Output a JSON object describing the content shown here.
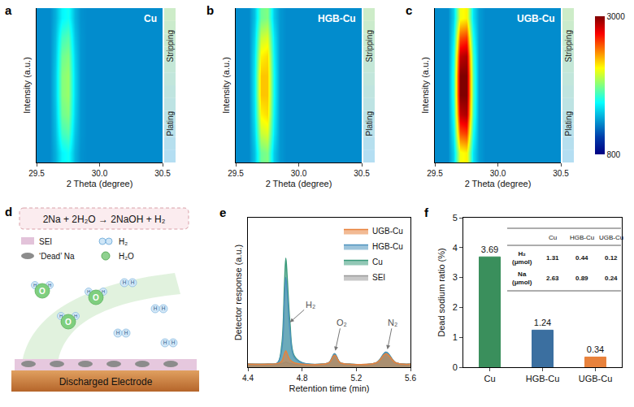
{
  "chart_data": [
    {
      "type": "heatmap",
      "panel_label": "a",
      "title": "Cu",
      "x_label": "2 Theta (degree)",
      "y_label": "Intensity (a.u.)",
      "x": [
        29.5,
        29.6,
        29.65,
        29.7,
        29.75,
        29.8,
        29.85,
        29.9,
        30.0,
        30.25,
        30.5
      ],
      "cells": [
        [
          1300,
          1300,
          1400,
          1600,
          1650,
          1420,
          1320,
          1300,
          1300,
          1300,
          1300
        ],
        [
          1300,
          1300,
          1430,
          1750,
          1800,
          1460,
          1330,
          1300,
          1300,
          1300,
          1300
        ],
        [
          1300,
          1300,
          1450,
          1850,
          1900,
          1500,
          1330,
          1300,
          1300,
          1300,
          1300
        ],
        [
          1300,
          1300,
          1470,
          1900,
          1950,
          1520,
          1330,
          1300,
          1300,
          1300,
          1300
        ],
        [
          1300,
          1300,
          1470,
          1900,
          1950,
          1520,
          1330,
          1300,
          1300,
          1300,
          1300
        ],
        [
          1300,
          1300,
          1450,
          1850,
          1900,
          1500,
          1330,
          1300,
          1300,
          1300,
          1300
        ],
        [
          1300,
          1300,
          1430,
          1750,
          1800,
          1460,
          1330,
          1300,
          1300,
          1300,
          1300
        ],
        [
          1300,
          1300,
          1400,
          1600,
          1650,
          1420,
          1320,
          1300,
          1300,
          1300,
          1300
        ]
      ],
      "xlim": [
        29.5,
        30.5
      ],
      "xticks": [
        29.5,
        {
          "value": 30,
          "label": "30.0"
        },
        30.5
      ],
      "colorbar_range": [
        800,
        3000
      ],
      "annotations": [
        "Stripping",
        "Plating"
      ],
      "tick_labels": "x"
    },
    {
      "type": "heatmap",
      "panel_label": "b",
      "title": "HGB-Cu",
      "x_label": "2 Theta (degree)",
      "y_label": "Intensity (a.u.)",
      "x": [
        29.5,
        29.6,
        29.65,
        29.7,
        29.75,
        29.8,
        29.85,
        29.9,
        30.0,
        30.25,
        30.5
      ],
      "cells": [
        [
          1300,
          1300,
          1450,
          1850,
          1900,
          1480,
          1340,
          1300,
          1300,
          1300,
          1300
        ],
        [
          1300,
          1300,
          1500,
          2050,
          2100,
          1560,
          1340,
          1300,
          1300,
          1300,
          1300
        ],
        [
          1300,
          1300,
          1540,
          2200,
          2250,
          1600,
          1340,
          1300,
          1300,
          1300,
          1300
        ],
        [
          1300,
          1300,
          1560,
          2300,
          2300,
          1630,
          1340,
          1300,
          1300,
          1300,
          1300
        ],
        [
          1300,
          1300,
          1560,
          2300,
          2300,
          1630,
          1340,
          1300,
          1300,
          1300,
          1300
        ],
        [
          1300,
          1300,
          1540,
          2200,
          2250,
          1600,
          1340,
          1300,
          1300,
          1300,
          1300
        ],
        [
          1300,
          1300,
          1500,
          2050,
          2100,
          1560,
          1340,
          1300,
          1300,
          1300,
          1300
        ],
        [
          1300,
          1300,
          1450,
          1850,
          1900,
          1480,
          1340,
          1300,
          1300,
          1300,
          1300
        ]
      ],
      "xlim": [
        29.5,
        30.5
      ],
      "xticks": [
        29.5,
        {
          "value": 30,
          "label": "30.0"
        },
        30.5
      ],
      "colorbar_range": [
        800,
        3000
      ],
      "annotations": [
        "Stripping",
        "Plating"
      ],
      "tick_labels": "x"
    },
    {
      "type": "heatmap",
      "panel_label": "c",
      "title": "UGB-Cu",
      "x_label": "2 Theta (degree)",
      "y_label": "Intensity (a.u.)",
      "x": [
        29.5,
        29.6,
        29.65,
        29.7,
        29.75,
        29.8,
        29.85,
        29.9,
        30.0,
        30.25,
        30.5
      ],
      "cells": [
        [
          1300,
          1300,
          1500,
          2150,
          2200,
          1550,
          1350,
          1300,
          1300,
          1300,
          1300
        ],
        [
          1300,
          1300,
          1580,
          2550,
          2600,
          1650,
          1350,
          1300,
          1300,
          1300,
          1300
        ],
        [
          1300,
          1300,
          1650,
          2850,
          2900,
          1750,
          1350,
          1300,
          1300,
          1300,
          1300
        ],
        [
          1300,
          1300,
          1700,
          3000,
          3000,
          1800,
          1350,
          1300,
          1300,
          1300,
          1300
        ],
        [
          1300,
          1300,
          1700,
          3000,
          3000,
          1800,
          1350,
          1300,
          1300,
          1300,
          1300
        ],
        [
          1300,
          1300,
          1650,
          2850,
          2900,
          1750,
          1350,
          1300,
          1300,
          1300,
          1300
        ],
        [
          1300,
          1300,
          1580,
          2550,
          2600,
          1650,
          1350,
          1300,
          1300,
          1300,
          1300
        ],
        [
          1300,
          1300,
          1500,
          2150,
          2200,
          1550,
          1350,
          1300,
          1300,
          1300,
          1300
        ]
      ],
      "xlim": [
        29.5,
        30.5
      ],
      "xticks": [
        29.5,
        {
          "value": 30,
          "label": "30.0"
        },
        30.5
      ],
      "colorbar_range": [
        800,
        3000
      ],
      "colorbar_ticks": [
        800,
        3000
      ],
      "annotations": [
        "Stripping",
        "Plating"
      ],
      "tick_labels": "x"
    },
    {
      "type": "line",
      "panel_label": "e",
      "x_label": "Retention time (min)",
      "y_label": "Detector response (a.u.)",
      "x": [
        4.4,
        4.55,
        4.62,
        4.65,
        4.67,
        4.68,
        4.69,
        4.71,
        4.74,
        4.8,
        4.95,
        5.0,
        5.04,
        5.08,
        5.15,
        5.35,
        5.42,
        5.49,
        5.6
      ],
      "series": [
        {
          "name": "UGB-Cu",
          "color": "#e8823c",
          "values": [
            0.02,
            0.02,
            0.025,
            0.04,
            0.09,
            0.11,
            0.09,
            0.05,
            0.03,
            0.02,
            0.02,
            0.03,
            0.08,
            0.03,
            0.02,
            0.03,
            0.09,
            0.03,
            0.02
          ]
        },
        {
          "name": "HGB-Cu",
          "color": "#4d93bd",
          "values": [
            0.02,
            0.02,
            0.03,
            0.12,
            0.45,
            0.6,
            0.5,
            0.25,
            0.07,
            0.03,
            0.02,
            0.03,
            0.09,
            0.03,
            0.02,
            0.03,
            0.1,
            0.03,
            0.02
          ]
        },
        {
          "name": "Cu",
          "color": "#3a9a7a",
          "values": [
            0.02,
            0.02,
            0.03,
            0.15,
            0.55,
            0.73,
            0.6,
            0.3,
            0.08,
            0.03,
            0.02,
            0.03,
            0.09,
            0.03,
            0.02,
            0.03,
            0.1,
            0.03,
            0.02
          ]
        },
        {
          "name": "SEI",
          "color": "#9a9a9a",
          "values": [
            0.02,
            0.02,
            0.02,
            0.025,
            0.03,
            0.035,
            0.03,
            0.025,
            0.02,
            0.02,
            0.02,
            0.03,
            0.08,
            0.03,
            0.02,
            0.03,
            0.09,
            0.03,
            0.02
          ]
        }
      ],
      "xlim": [
        4.4,
        5.6
      ],
      "xticks": [
        4.4,
        4.8,
        5.2,
        5.6
      ],
      "ylim": [
        0,
        1
      ],
      "tick_labels": "x",
      "legend": "upper right",
      "annotations": [
        "H₂",
        "O₂",
        "N₂"
      ]
    },
    {
      "type": "bar",
      "panel_label": "f",
      "y_label": "Dead sodium ratio (%)",
      "categories": [
        "Cu",
        "HGB-Cu",
        "UGB-Cu"
      ],
      "values": [
        3.69,
        1.24,
        0.34
      ],
      "colors": [
        "#3a8f5c",
        "#3b6fa0",
        "#e8823c"
      ],
      "ylim": [
        0,
        5
      ],
      "yticks": [
        0,
        1,
        2,
        3,
        4,
        5
      ],
      "data_labels": true,
      "grid": false,
      "table": {
        "columns": [
          "Cu",
          "HGB-Cu",
          "UGB-Cu"
        ],
        "rows": [
          {
            "label": "H₂ (μmol)",
            "values": [
              1.31,
              0.44,
              0.12
            ]
          },
          {
            "label": "Na (μmol)",
            "values": [
              2.63,
              0.89,
              0.24
            ]
          }
        ]
      }
    }
  ],
  "diagram": {
    "panel_label": "d",
    "equation": "2Na + 2H₂O → 2NaOH + H₂",
    "key_items": [
      "SEI",
      "‘Dead’ Na",
      "H₂",
      "H₂O"
    ],
    "atoms": {
      "hydrogen": "H",
      "oxygen": "O"
    },
    "electrode": "Discharged Electrode"
  }
}
